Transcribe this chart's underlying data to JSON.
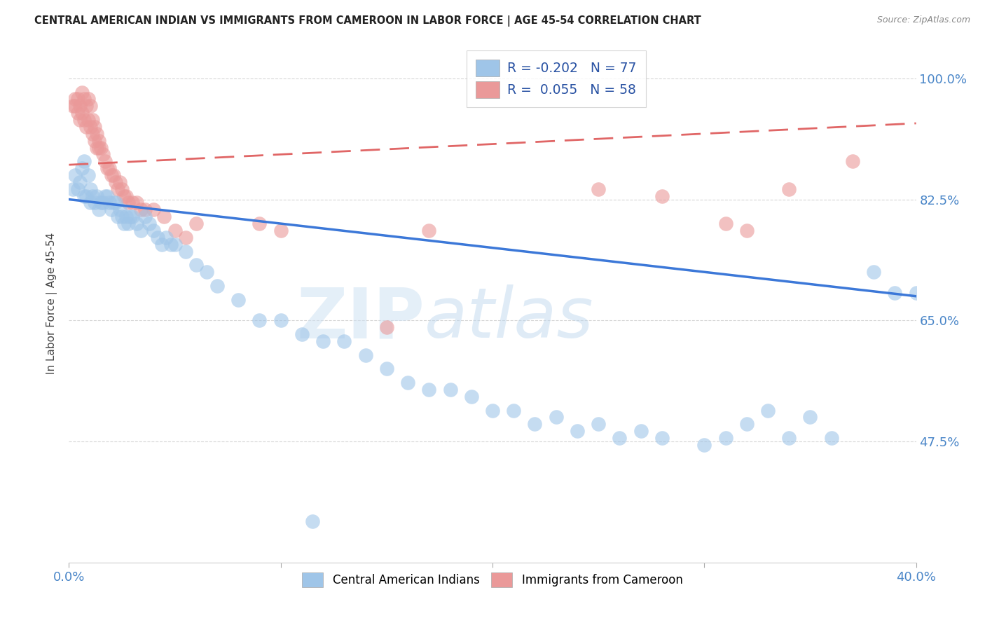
{
  "title": "CENTRAL AMERICAN INDIAN VS IMMIGRANTS FROM CAMEROON IN LABOR FORCE | AGE 45-54 CORRELATION CHART",
  "source": "Source: ZipAtlas.com",
  "ylabel": "In Labor Force | Age 45-54",
  "xlim": [
    0.0,
    0.4
  ],
  "ylim": [
    0.3,
    1.05
  ],
  "ytick_positions": [
    0.475,
    0.65,
    0.825,
    1.0
  ],
  "ytick_labels": [
    "47.5%",
    "65.0%",
    "82.5%",
    "100.0%"
  ],
  "blue_color": "#9fc5e8",
  "pink_color": "#ea9999",
  "blue_line_color": "#3c78d8",
  "pink_line_color": "#e06666",
  "background_color": "#ffffff",
  "blue_scatter_x": [
    0.002,
    0.003,
    0.004,
    0.005,
    0.006,
    0.007,
    0.007,
    0.008,
    0.009,
    0.01,
    0.01,
    0.011,
    0.012,
    0.013,
    0.014,
    0.015,
    0.016,
    0.017,
    0.018,
    0.019,
    0.02,
    0.021,
    0.022,
    0.023,
    0.024,
    0.025,
    0.026,
    0.027,
    0.028,
    0.029,
    0.03,
    0.032,
    0.034,
    0.036,
    0.038,
    0.04,
    0.042,
    0.044,
    0.046,
    0.048,
    0.05,
    0.055,
    0.06,
    0.065,
    0.07,
    0.08,
    0.09,
    0.1,
    0.11,
    0.12,
    0.13,
    0.14,
    0.15,
    0.16,
    0.17,
    0.18,
    0.19,
    0.2,
    0.21,
    0.22,
    0.23,
    0.24,
    0.25,
    0.26,
    0.27,
    0.28,
    0.3,
    0.31,
    0.32,
    0.33,
    0.34,
    0.35,
    0.36,
    0.38,
    0.39,
    0.4,
    0.115
  ],
  "blue_scatter_y": [
    0.84,
    0.86,
    0.84,
    0.85,
    0.87,
    0.83,
    0.88,
    0.83,
    0.86,
    0.84,
    0.82,
    0.83,
    0.82,
    0.83,
    0.81,
    0.82,
    0.82,
    0.83,
    0.83,
    0.82,
    0.81,
    0.82,
    0.82,
    0.8,
    0.81,
    0.8,
    0.79,
    0.8,
    0.79,
    0.8,
    0.8,
    0.79,
    0.78,
    0.8,
    0.79,
    0.78,
    0.77,
    0.76,
    0.77,
    0.76,
    0.76,
    0.75,
    0.73,
    0.72,
    0.7,
    0.68,
    0.65,
    0.65,
    0.63,
    0.62,
    0.62,
    0.6,
    0.58,
    0.56,
    0.55,
    0.55,
    0.54,
    0.52,
    0.52,
    0.5,
    0.51,
    0.49,
    0.5,
    0.48,
    0.49,
    0.48,
    0.47,
    0.48,
    0.5,
    0.52,
    0.48,
    0.51,
    0.48,
    0.72,
    0.69,
    0.69,
    0.36
  ],
  "pink_scatter_x": [
    0.002,
    0.003,
    0.003,
    0.004,
    0.004,
    0.005,
    0.005,
    0.006,
    0.006,
    0.007,
    0.007,
    0.008,
    0.008,
    0.009,
    0.009,
    0.01,
    0.01,
    0.011,
    0.011,
    0.012,
    0.012,
    0.013,
    0.013,
    0.014,
    0.014,
    0.015,
    0.016,
    0.017,
    0.018,
    0.019,
    0.02,
    0.021,
    0.022,
    0.023,
    0.024,
    0.025,
    0.026,
    0.027,
    0.028,
    0.03,
    0.032,
    0.034,
    0.036,
    0.04,
    0.045,
    0.05,
    0.055,
    0.06,
    0.09,
    0.1,
    0.15,
    0.17,
    0.25,
    0.28,
    0.31,
    0.32,
    0.34,
    0.37
  ],
  "pink_scatter_y": [
    0.96,
    0.97,
    0.96,
    0.97,
    0.95,
    0.96,
    0.94,
    0.98,
    0.95,
    0.97,
    0.94,
    0.96,
    0.93,
    0.97,
    0.94,
    0.96,
    0.93,
    0.94,
    0.92,
    0.93,
    0.91,
    0.92,
    0.9,
    0.91,
    0.9,
    0.9,
    0.89,
    0.88,
    0.87,
    0.87,
    0.86,
    0.86,
    0.85,
    0.84,
    0.85,
    0.84,
    0.83,
    0.83,
    0.82,
    0.82,
    0.82,
    0.81,
    0.81,
    0.81,
    0.8,
    0.78,
    0.77,
    0.79,
    0.79,
    0.78,
    0.64,
    0.78,
    0.84,
    0.83,
    0.79,
    0.78,
    0.84,
    0.88
  ],
  "blue_line_x0": 0.0,
  "blue_line_y0": 0.825,
  "blue_line_x1": 0.4,
  "blue_line_y1": 0.685,
  "pink_line_x0": 0.0,
  "pink_line_y0": 0.875,
  "pink_line_x1": 0.4,
  "pink_line_y1": 0.935
}
